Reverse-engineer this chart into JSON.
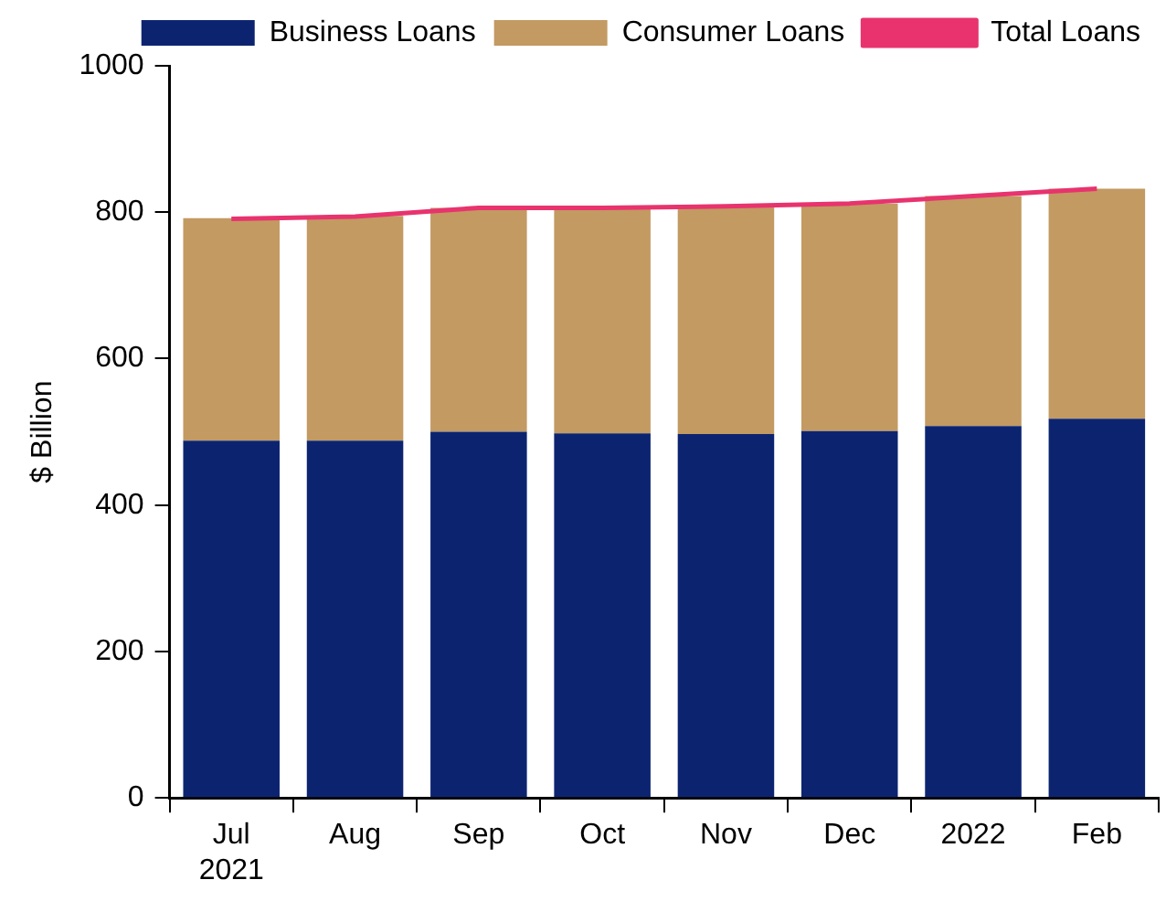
{
  "chart_data": {
    "type": "bar",
    "stacked": true,
    "ylabel": "$ Billion",
    "categories": [
      "Jul\n2021",
      "Aug",
      "Sep",
      "Oct",
      "Nov",
      "Dec",
      "2022",
      "Feb"
    ],
    "series": [
      {
        "name": "Business Loans",
        "color": "#0c2470",
        "values": [
          488,
          488,
          500,
          498,
          497,
          501,
          508,
          518
        ]
      },
      {
        "name": "Consumer Loans",
        "color": "#c29a62",
        "values": [
          304,
          307,
          306,
          308,
          311,
          311,
          314,
          314
        ]
      },
      {
        "name": "Total Loans",
        "type": "line",
        "color": "#e8336e",
        "values": [
          791,
          794,
          806,
          806,
          808,
          812,
          822,
          832
        ]
      }
    ],
    "ylim": [
      0,
      1000
    ],
    "yticks": [
      0,
      200,
      400,
      600,
      800,
      1000
    ],
    "grid": false,
    "legend": "top",
    "marker": "none"
  }
}
